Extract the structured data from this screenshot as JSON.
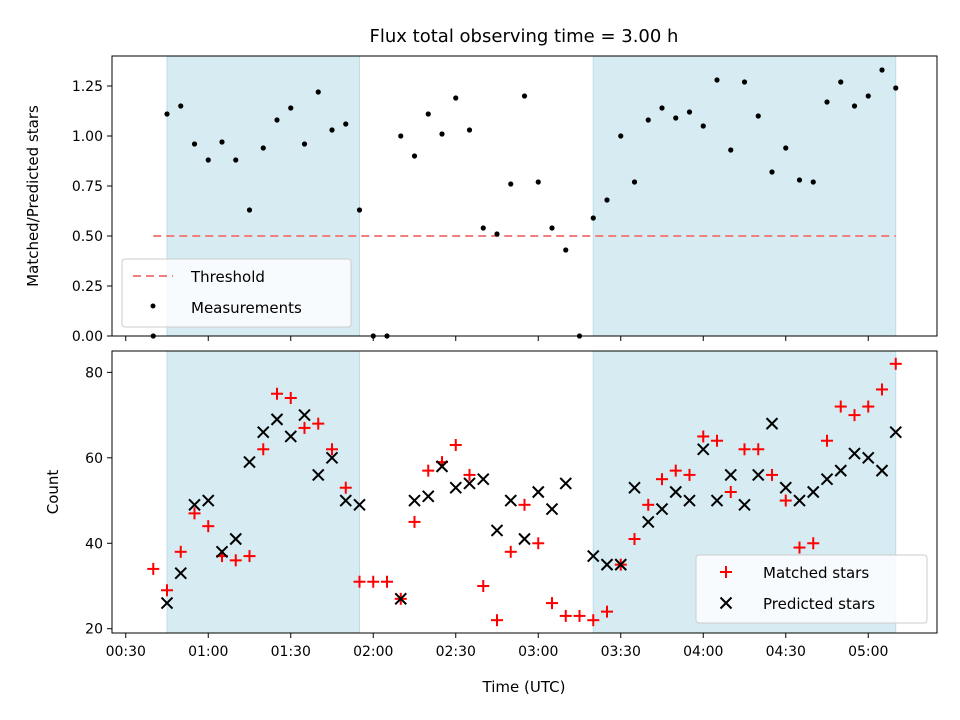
{
  "chart_data": {
    "title": "Flux total observing time = 3.00 h",
    "xlabel": "Time (UTC)",
    "x_ticks": [
      "00:30",
      "01:00",
      "01:30",
      "02:00",
      "02:30",
      "03:00",
      "03:30",
      "04:00",
      "04:30",
      "05:00"
    ],
    "shaded_intervals": [
      [
        "00:45",
        "01:55"
      ],
      [
        "03:20",
        "05:10"
      ]
    ],
    "top_panel": {
      "type": "scatter",
      "ylabel": "Matched/Predicted stars",
      "ylim": [
        0,
        1.4
      ],
      "y_ticks": [
        "0.00",
        "0.25",
        "0.50",
        "0.75",
        "1.00",
        "1.25"
      ],
      "threshold": {
        "name": "Threshold",
        "value": 0.5,
        "x_range": [
          "00:40",
          "05:10"
        ],
        "color": "#f08080"
      },
      "measurements": {
        "name": "Measurements",
        "color": "#000000",
        "points": [
          [
            "00:40",
            0.0
          ],
          [
            "00:45",
            1.11
          ],
          [
            "00:50",
            1.15
          ],
          [
            "00:55",
            0.96
          ],
          [
            "01:00",
            0.88
          ],
          [
            "01:05",
            0.97
          ],
          [
            "01:10",
            0.88
          ],
          [
            "01:15",
            0.63
          ],
          [
            "01:20",
            0.94
          ],
          [
            "01:25",
            1.08
          ],
          [
            "01:30",
            1.14
          ],
          [
            "01:35",
            0.96
          ],
          [
            "01:40",
            1.22
          ],
          [
            "01:45",
            1.03
          ],
          [
            "01:50",
            1.06
          ],
          [
            "01:55",
            0.63
          ],
          [
            "02:00",
            0.0
          ],
          [
            "02:05",
            0.0
          ],
          [
            "02:10",
            1.0
          ],
          [
            "02:15",
            0.9
          ],
          [
            "02:20",
            1.11
          ],
          [
            "02:25",
            1.01
          ],
          [
            "02:30",
            1.19
          ],
          [
            "02:35",
            1.03
          ],
          [
            "02:40",
            0.54
          ],
          [
            "02:45",
            0.51
          ],
          [
            "02:50",
            0.76
          ],
          [
            "02:55",
            1.2
          ],
          [
            "03:00",
            0.77
          ],
          [
            "03:05",
            0.54
          ],
          [
            "03:10",
            0.43
          ],
          [
            "03:15",
            0.0
          ],
          [
            "03:20",
            0.59
          ],
          [
            "03:25",
            0.68
          ],
          [
            "03:30",
            1.0
          ],
          [
            "03:35",
            0.77
          ],
          [
            "03:40",
            1.08
          ],
          [
            "03:45",
            1.14
          ],
          [
            "03:50",
            1.09
          ],
          [
            "03:55",
            1.12
          ],
          [
            "04:00",
            1.05
          ],
          [
            "04:05",
            1.28
          ],
          [
            "04:10",
            0.93
          ],
          [
            "04:15",
            1.27
          ],
          [
            "04:20",
            1.1
          ],
          [
            "04:25",
            0.82
          ],
          [
            "04:30",
            0.94
          ],
          [
            "04:35",
            0.78
          ],
          [
            "04:40",
            0.77
          ],
          [
            "04:45",
            1.17
          ],
          [
            "04:50",
            1.27
          ],
          [
            "04:55",
            1.15
          ],
          [
            "05:00",
            1.2
          ],
          [
            "05:05",
            1.33
          ],
          [
            "05:10",
            1.24
          ]
        ]
      },
      "legend_position": "lower-left"
    },
    "bottom_panel": {
      "type": "scatter",
      "ylabel": "Count",
      "ylim": [
        19,
        85
      ],
      "y_ticks": [
        "20",
        "40",
        "60",
        "80"
      ],
      "legend_position": "lower-right",
      "series": [
        {
          "name": "Matched stars",
          "marker": "plus",
          "color": "#ff0000",
          "points": [
            [
              "00:40",
              34
            ],
            [
              "00:45",
              29
            ],
            [
              "00:50",
              38
            ],
            [
              "00:55",
              47
            ],
            [
              "01:00",
              44
            ],
            [
              "01:05",
              37
            ],
            [
              "01:10",
              36
            ],
            [
              "01:15",
              37
            ],
            [
              "01:20",
              62
            ],
            [
              "01:25",
              75
            ],
            [
              "01:30",
              74
            ],
            [
              "01:35",
              67
            ],
            [
              "01:40",
              68
            ],
            [
              "01:45",
              62
            ],
            [
              "01:50",
              53
            ],
            [
              "01:55",
              31
            ],
            [
              "02:00",
              31
            ],
            [
              "02:05",
              31
            ],
            [
              "02:10",
              27
            ],
            [
              "02:15",
              45
            ],
            [
              "02:20",
              57
            ],
            [
              "02:25",
              59
            ],
            [
              "02:30",
              63
            ],
            [
              "02:35",
              56
            ],
            [
              "02:40",
              30
            ],
            [
              "02:45",
              22
            ],
            [
              "02:50",
              38
            ],
            [
              "02:55",
              49
            ],
            [
              "03:00",
              40
            ],
            [
              "03:05",
              26
            ],
            [
              "03:10",
              23
            ],
            [
              "03:15",
              23
            ],
            [
              "03:20",
              22
            ],
            [
              "03:25",
              24
            ],
            [
              "03:30",
              35
            ],
            [
              "03:35",
              41
            ],
            [
              "03:40",
              49
            ],
            [
              "03:45",
              55
            ],
            [
              "03:50",
              57
            ],
            [
              "03:55",
              56
            ],
            [
              "04:00",
              65
            ],
            [
              "04:05",
              64
            ],
            [
              "04:10",
              52
            ],
            [
              "04:15",
              62
            ],
            [
              "04:20",
              62
            ],
            [
              "04:25",
              56
            ],
            [
              "04:30",
              50
            ],
            [
              "04:35",
              39
            ],
            [
              "04:40",
              40
            ],
            [
              "04:45",
              64
            ],
            [
              "04:50",
              72
            ],
            [
              "04:55",
              70
            ],
            [
              "05:00",
              72
            ],
            [
              "05:05",
              76
            ],
            [
              "05:10",
              82
            ]
          ]
        },
        {
          "name": "Predicted stars",
          "marker": "x",
          "color": "#000000",
          "points": [
            [
              "00:45",
              26
            ],
            [
              "00:50",
              33
            ],
            [
              "00:55",
              49
            ],
            [
              "01:00",
              50
            ],
            [
              "01:05",
              38
            ],
            [
              "01:10",
              41
            ],
            [
              "01:15",
              59
            ],
            [
              "01:20",
              66
            ],
            [
              "01:25",
              69
            ],
            [
              "01:30",
              65
            ],
            [
              "01:35",
              70
            ],
            [
              "01:40",
              56
            ],
            [
              "01:45",
              60
            ],
            [
              "01:50",
              50
            ],
            [
              "01:55",
              49
            ],
            [
              "02:10",
              27
            ],
            [
              "02:15",
              50
            ],
            [
              "02:20",
              51
            ],
            [
              "02:25",
              58
            ],
            [
              "02:30",
              53
            ],
            [
              "02:35",
              54
            ],
            [
              "02:40",
              55
            ],
            [
              "02:45",
              43
            ],
            [
              "02:50",
              50
            ],
            [
              "02:55",
              41
            ],
            [
              "03:00",
              52
            ],
            [
              "03:05",
              48
            ],
            [
              "03:10",
              54
            ],
            [
              "03:20",
              37
            ],
            [
              "03:25",
              35
            ],
            [
              "03:30",
              35
            ],
            [
              "03:35",
              53
            ],
            [
              "03:40",
              45
            ],
            [
              "03:45",
              48
            ],
            [
              "03:50",
              52
            ],
            [
              "03:55",
              50
            ],
            [
              "04:00",
              62
            ],
            [
              "04:05",
              50
            ],
            [
              "04:10",
              56
            ],
            [
              "04:15",
              49
            ],
            [
              "04:20",
              56
            ],
            [
              "04:25",
              68
            ],
            [
              "04:30",
              53
            ],
            [
              "04:35",
              50
            ],
            [
              "04:40",
              52
            ],
            [
              "04:45",
              55
            ],
            [
              "04:50",
              57
            ],
            [
              "04:55",
              61
            ],
            [
              "05:00",
              60
            ],
            [
              "05:05",
              57
            ],
            [
              "05:10",
              66
            ]
          ]
        }
      ]
    }
  }
}
